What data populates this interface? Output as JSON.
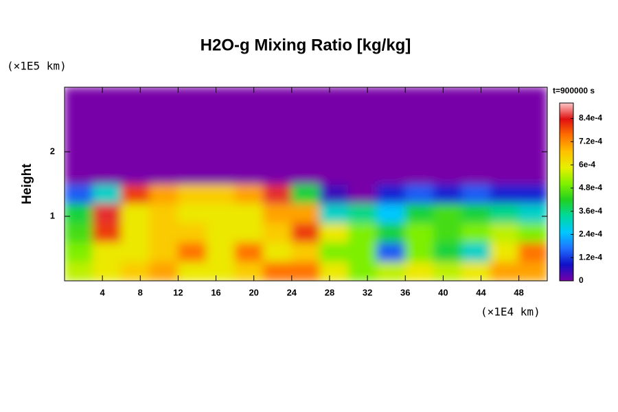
{
  "chart_data": {
    "type": "heatmap",
    "title": "H2O-g Mixing Ratio [kg/kg]",
    "ylabel": "Height",
    "y_unit": "(×1E5 km)",
    "x_unit": "(×1E4 km)",
    "time_label": "t=900000 s",
    "xlim": [
      0,
      51
    ],
    "xticks": [
      4,
      8,
      12,
      16,
      20,
      24,
      28,
      32,
      36,
      40,
      44,
      48
    ],
    "ylim": [
      0,
      3
    ],
    "yticks": [
      1,
      2
    ],
    "x": [
      1.5,
      4.5,
      7.5,
      10.5,
      13.5,
      16.5,
      19.5,
      22.5,
      25.5,
      28.5,
      31.5,
      34.5,
      37.5,
      40.5,
      43.5,
      46.5,
      49.5
    ],
    "y": [
      0.15,
      0.45,
      0.75,
      1.05,
      1.35,
      1.65,
      1.95,
      2.25,
      2.55,
      2.85
    ],
    "z": [
      [
        0.00055,
        0.0006,
        0.00065,
        0.0007,
        0.0006,
        0.0006,
        0.00065,
        0.00075,
        0.00075,
        0.0006,
        0.0005,
        0.00055,
        0.0006,
        0.00055,
        0.0006,
        0.0007,
        0.0007
      ],
      [
        0.0005,
        0.0006,
        0.0006,
        0.00065,
        0.00075,
        0.0006,
        0.00075,
        0.0006,
        0.00065,
        0.0005,
        0.0005,
        0.00015,
        0.0005,
        0.0004,
        0.0003,
        0.0006,
        0.00075
      ],
      [
        0.00045,
        0.0008,
        0.0006,
        0.00065,
        0.00065,
        0.0006,
        0.0006,
        0.00065,
        0.0008,
        0.0006,
        0.0005,
        0.0004,
        0.0005,
        0.00045,
        0.0005,
        0.00055,
        0.0005
      ],
      [
        0.0004,
        0.00085,
        0.0006,
        0.00065,
        0.0006,
        0.0006,
        0.0006,
        0.0007,
        0.0007,
        0.0003,
        0.00035,
        0.00025,
        0.0004,
        0.00045,
        0.0004,
        0.00035,
        0.0003
      ],
      [
        0.00015,
        0.0003,
        0.0008,
        0.0007,
        0.00065,
        0.00065,
        0.0007,
        0.00085,
        0.0004,
        5e-05,
        0,
        0.0001,
        0.00015,
        0.0001,
        0.00015,
        0.0001,
        0.0001
      ],
      [
        0,
        0,
        0,
        0,
        0,
        0,
        0,
        0,
        0,
        0,
        0,
        0,
        0,
        0,
        0,
        0,
        0
      ],
      [
        0,
        0,
        0,
        0,
        0,
        0,
        0,
        0,
        0,
        0,
        0,
        0,
        0,
        0,
        0,
        0,
        0
      ],
      [
        0,
        0,
        0,
        0,
        0,
        0,
        0,
        0,
        0,
        0,
        0,
        0,
        0,
        0,
        0,
        0,
        0
      ],
      [
        0,
        0,
        0,
        0,
        0,
        0,
        0,
        0,
        0,
        0,
        0,
        0,
        0,
        0,
        0,
        0,
        0
      ],
      [
        0,
        0,
        0,
        0,
        0,
        0,
        0,
        0,
        0,
        0,
        0,
        0,
        0,
        0,
        0,
        0,
        0
      ]
    ],
    "clim": [
      0,
      0.00092
    ],
    "colormap": [
      "#7800a8",
      "#1010c8",
      "#2070ff",
      "#00c8ff",
      "#00d8a0",
      "#20d020",
      "#80f000",
      "#e8f000",
      "#ffc000",
      "#ff7000",
      "#e01010",
      "#ffc8c8"
    ],
    "cticks": [
      {
        "value": 0,
        "label": "0"
      },
      {
        "value": 0.00012,
        "label": "1.2e-4"
      },
      {
        "value": 0.00024,
        "label": "2.4e-4"
      },
      {
        "value": 0.00036,
        "label": "3.6e-4"
      },
      {
        "value": 0.00048,
        "label": "4.8e-4"
      },
      {
        "value": 0.0006,
        "label": "6e-4"
      },
      {
        "value": 0.00072,
        "label": "7.2e-4"
      },
      {
        "value": 0.00084,
        "label": "8.4e-4"
      }
    ]
  }
}
